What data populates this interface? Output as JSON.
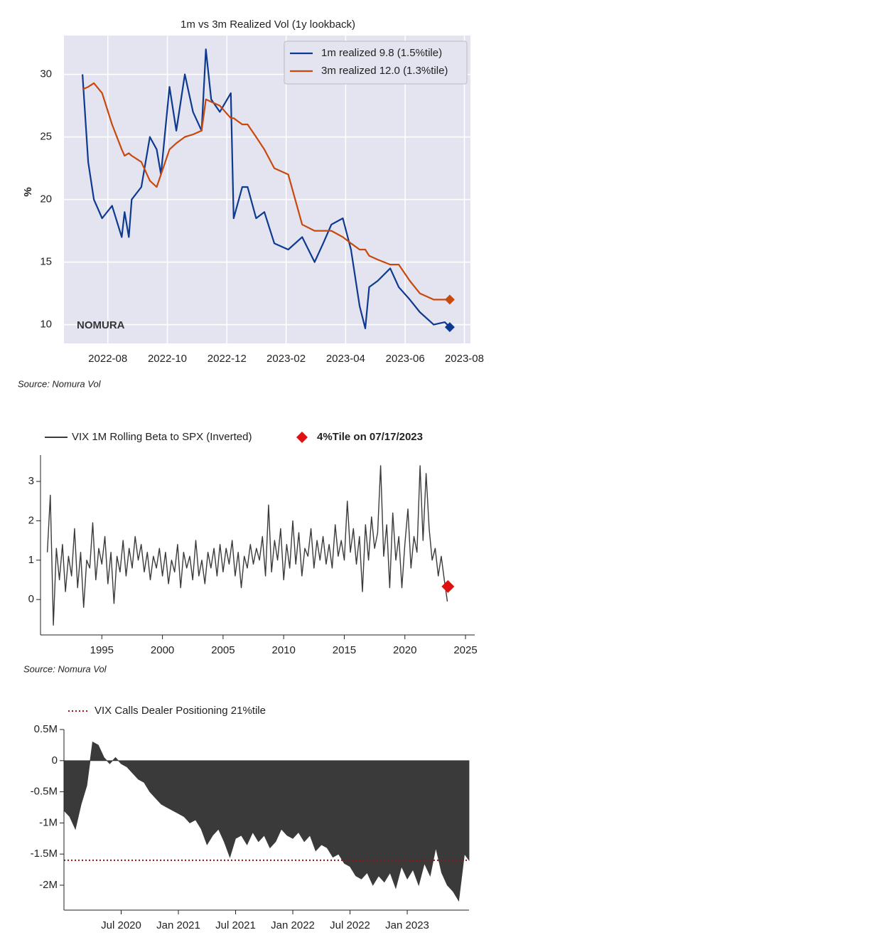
{
  "chart_data": [
    {
      "type": "line",
      "title": "1m vs 3m Realized Vol (1y lookback)",
      "ylabel": "%",
      "watermark": "NOMURA",
      "source": "Source: Nomura Vol",
      "background": "#e3e4f0",
      "grid": true,
      "legend": "upper right",
      "last_point_marker": "diamond",
      "xlim": [
        2022.46,
        2023.6
      ],
      "xticks": [
        {
          "value": 2022.583,
          "label": "2022-08"
        },
        {
          "value": 2022.75,
          "label": "2022-10"
        },
        {
          "value": 2022.917,
          "label": "2022-12"
        },
        {
          "value": 2023.083,
          "label": "2023-02"
        },
        {
          "value": 2023.25,
          "label": "2023-04"
        },
        {
          "value": 2023.417,
          "label": "2023-06"
        },
        {
          "value": 2023.583,
          "label": "2023-08"
        }
      ],
      "ylim": [
        8.5,
        33.1
      ],
      "yticks": [
        10,
        15,
        20,
        25,
        30
      ],
      "x": [
        2022.512,
        2022.528,
        2022.544,
        2022.567,
        2022.595,
        2022.622,
        2022.63,
        2022.642,
        2022.65,
        2022.677,
        2022.701,
        2022.72,
        2022.732,
        2022.756,
        2022.775,
        2022.799,
        2022.822,
        2022.846,
        2022.858,
        2022.873,
        2022.897,
        2022.928,
        2022.936,
        2022.96,
        2022.975,
        2022.999,
        2023.022,
        2023.05,
        2023.089,
        2023.128,
        2023.163,
        2023.187,
        2023.21,
        2023.242,
        2023.265,
        2023.289,
        2023.305,
        2023.316,
        2023.34,
        2023.375,
        2023.399,
        2023.43,
        2023.458,
        2023.497,
        2023.528,
        2023.542
      ],
      "series": [
        {
          "name": "1m realized 9.8 (1.5%tile)",
          "color": "#0d3a8e",
          "values": [
            30,
            23,
            20,
            18.5,
            19.5,
            17,
            19,
            17,
            20,
            21,
            25,
            24,
            22,
            29,
            25.5,
            30,
            27,
            25.5,
            32,
            28,
            27,
            28.5,
            18.5,
            21,
            21,
            18.5,
            19,
            16.5,
            16,
            17,
            15,
            16.5,
            18,
            18.5,
            16,
            11.5,
            9.7,
            13,
            13.5,
            14.5,
            13,
            12,
            11,
            10,
            10.2,
            9.8
          ]
        },
        {
          "name": "3m realized 12.0 (1.3%tile)",
          "color": "#c8480e",
          "values": [
            28.8,
            29,
            29.3,
            28.5,
            26,
            24,
            23.5,
            23.7,
            23.5,
            23,
            21.5,
            21,
            22,
            24,
            24.5,
            25,
            25.2,
            25.5,
            28,
            27.8,
            27.5,
            26.5,
            26.5,
            26,
            26,
            25,
            24,
            22.5,
            22,
            18,
            17.5,
            17.5,
            17.5,
            17,
            16.5,
            16,
            16,
            15.5,
            15.2,
            14.8,
            14.8,
            13.5,
            12.5,
            12,
            12,
            12
          ]
        }
      ]
    },
    {
      "type": "line",
      "source": "Source: Nomura Vol",
      "grid": false,
      "legend": "upper left",
      "xlim": [
        1989.94,
        2025.76
      ],
      "xticks": [
        1995,
        2000,
        2005,
        2010,
        2015,
        2020,
        2025
      ],
      "ylim": [
        -0.9,
        3.67
      ],
      "yticks": [
        0,
        1,
        2,
        3
      ],
      "marker": {
        "x": 2023.55,
        "y": 0.33,
        "label": "4%Tile on 07/17/2023",
        "color": "#e01010"
      },
      "x": [
        1990.5,
        1990.75,
        1991,
        1991.25,
        1991.5,
        1991.75,
        1992,
        1992.25,
        1992.5,
        1992.75,
        1993,
        1993.25,
        1993.5,
        1993.75,
        1994,
        1994.25,
        1994.5,
        1994.75,
        1995,
        1995.25,
        1995.5,
        1995.75,
        1996,
        1996.25,
        1996.5,
        1996.75,
        1997,
        1997.25,
        1997.5,
        1997.75,
        1998,
        1998.25,
        1998.5,
        1998.75,
        1999,
        1999.25,
        1999.5,
        1999.75,
        2000,
        2000.25,
        2000.5,
        2000.75,
        2001,
        2001.25,
        2001.5,
        2001.75,
        2002,
        2002.25,
        2002.5,
        2002.75,
        2003,
        2003.25,
        2003.5,
        2003.75,
        2004,
        2004.25,
        2004.5,
        2004.75,
        2005,
        2005.25,
        2005.5,
        2005.75,
        2006,
        2006.25,
        2006.5,
        2006.75,
        2007,
        2007.25,
        2007.5,
        2007.75,
        2008,
        2008.25,
        2008.5,
        2008.75,
        2009,
        2009.25,
        2009.5,
        2009.75,
        2010,
        2010.25,
        2010.5,
        2010.75,
        2011,
        2011.25,
        2011.5,
        2011.75,
        2012,
        2012.25,
        2012.5,
        2012.75,
        2013,
        2013.25,
        2013.5,
        2013.75,
        2014,
        2014.25,
        2014.5,
        2014.75,
        2015,
        2015.25,
        2015.5,
        2015.75,
        2016,
        2016.25,
        2016.5,
        2016.75,
        2017,
        2017.25,
        2017.5,
        2017.75,
        2018,
        2018.25,
        2018.5,
        2018.75,
        2019,
        2019.25,
        2019.5,
        2019.75,
        2020,
        2020.25,
        2020.5,
        2020.75,
        2021,
        2021.25,
        2021.5,
        2021.75,
        2022,
        2022.25,
        2022.5,
        2022.75,
        2023,
        2023.25,
        2023.5
      ],
      "series": [
        {
          "name": "VIX 1M Rolling Beta to SPX (Inverted)",
          "color": "#3a3a3a",
          "values": [
            1.2,
            2.65,
            -0.65,
            1.3,
            0.5,
            1.4,
            0.2,
            1.1,
            0.6,
            1.8,
            0.3,
            1.2,
            -0.2,
            1.0,
            0.8,
            1.95,
            0.5,
            1.3,
            0.9,
            1.6,
            0.4,
            1.2,
            -0.1,
            1.1,
            0.7,
            1.5,
            0.6,
            1.3,
            0.8,
            1.6,
            1.0,
            1.4,
            0.7,
            1.2,
            0.5,
            1.1,
            0.8,
            1.3,
            0.6,
            1.2,
            0.4,
            1.0,
            0.7,
            1.4,
            0.3,
            1.2,
            0.8,
            1.1,
            0.5,
            1.5,
            0.6,
            1.0,
            0.4,
            1.2,
            0.8,
            1.3,
            0.6,
            1.4,
            0.7,
            1.3,
            0.9,
            1.5,
            0.6,
            1.2,
            0.3,
            1.1,
            0.8,
            1.4,
            0.9,
            1.3,
            1.0,
            1.6,
            0.6,
            2.4,
            0.7,
            1.5,
            1.0,
            1.8,
            0.5,
            1.4,
            0.8,
            2.0,
            0.9,
            1.7,
            0.6,
            1.3,
            1.1,
            1.8,
            0.8,
            1.5,
            1.0,
            1.6,
            0.9,
            1.4,
            0.8,
            1.9,
            1.1,
            1.5,
            1.0,
            2.5,
            1.2,
            1.8,
            0.9,
            1.6,
            0.2,
            1.9,
            1.0,
            2.1,
            1.3,
            1.7,
            3.4,
            1.1,
            1.9,
            0.3,
            2.2,
            1.0,
            1.6,
            0.3,
            1.4,
            2.3,
            0.8,
            1.6,
            1.2,
            3.4,
            1.5,
            3.2,
            1.8,
            1.0,
            1.3,
            0.6,
            1.1,
            0.5,
            -0.05
          ]
        }
      ]
    },
    {
      "type": "area",
      "grid": false,
      "color": "#3a3a3a",
      "xlim": [
        2020.0,
        2023.54
      ],
      "xticks": [
        {
          "value": 2020.5,
          "label": "Jul 2020"
        },
        {
          "value": 2021.0,
          "label": "Jan 2021"
        },
        {
          "value": 2021.5,
          "label": "Jul 2021"
        },
        {
          "value": 2022.0,
          "label": "Jan 2022"
        },
        {
          "value": 2022.5,
          "label": "Jul 2022"
        },
        {
          "value": 2023.0,
          "label": "Jan 2023"
        }
      ],
      "ylim": [
        -2400000,
        500000
      ],
      "yticks": [
        {
          "value": 500000,
          "label": "0.5M"
        },
        0,
        {
          "value": -500000,
          "label": "-0.5M"
        },
        {
          "value": -1000000,
          "label": "-1M"
        },
        {
          "value": -1500000,
          "label": "-1.5M"
        },
        {
          "value": -2000000,
          "label": "-2M"
        }
      ],
      "hline": {
        "value": -1600000,
        "label": "VIX Calls Dealer Positioning 21%tile",
        "color": "#a01010"
      },
      "x": [
        2020.0,
        2020.05,
        2020.1,
        2020.15,
        2020.2,
        2020.25,
        2020.3,
        2020.35,
        2020.4,
        2020.45,
        2020.5,
        2020.55,
        2020.6,
        2020.65,
        2020.7,
        2020.75,
        2020.8,
        2020.85,
        2020.9,
        2020.95,
        2021.0,
        2021.05,
        2021.1,
        2021.15,
        2021.2,
        2021.25,
        2021.3,
        2021.35,
        2021.4,
        2021.45,
        2021.5,
        2021.55,
        2021.6,
        2021.65,
        2021.7,
        2021.75,
        2021.8,
        2021.85,
        2021.9,
        2021.95,
        2022.0,
        2022.05,
        2022.1,
        2022.15,
        2022.2,
        2022.25,
        2022.3,
        2022.35,
        2022.4,
        2022.45,
        2022.5,
        2022.55,
        2022.6,
        2022.65,
        2022.7,
        2022.75,
        2022.8,
        2022.85,
        2022.9,
        2022.95,
        2023.0,
        2023.05,
        2023.1,
        2023.15,
        2023.2,
        2023.25,
        2023.3,
        2023.35,
        2023.4,
        2023.45,
        2023.5,
        2023.54
      ],
      "values": [
        -800000,
        -900000,
        -1100000,
        -700000,
        -400000,
        300000,
        250000,
        50000,
        -50000,
        50000,
        -50000,
        -100000,
        -200000,
        -300000,
        -350000,
        -500000,
        -600000,
        -700000,
        -750000,
        -800000,
        -850000,
        -900000,
        -1000000,
        -950000,
        -1100000,
        -1350000,
        -1200000,
        -1100000,
        -1300000,
        -1550000,
        -1250000,
        -1200000,
        -1350000,
        -1150000,
        -1300000,
        -1200000,
        -1400000,
        -1300000,
        -1100000,
        -1200000,
        -1250000,
        -1150000,
        -1300000,
        -1200000,
        -1450000,
        -1350000,
        -1400000,
        -1550000,
        -1500000,
        -1650000,
        -1700000,
        -1850000,
        -1900000,
        -1800000,
        -2000000,
        -1850000,
        -1950000,
        -1800000,
        -2050000,
        -1700000,
        -1900000,
        -1750000,
        -2000000,
        -1650000,
        -1850000,
        -1400000,
        -1800000,
        -2000000,
        -2100000,
        -2250000,
        -1500000,
        -1600000
      ]
    }
  ]
}
